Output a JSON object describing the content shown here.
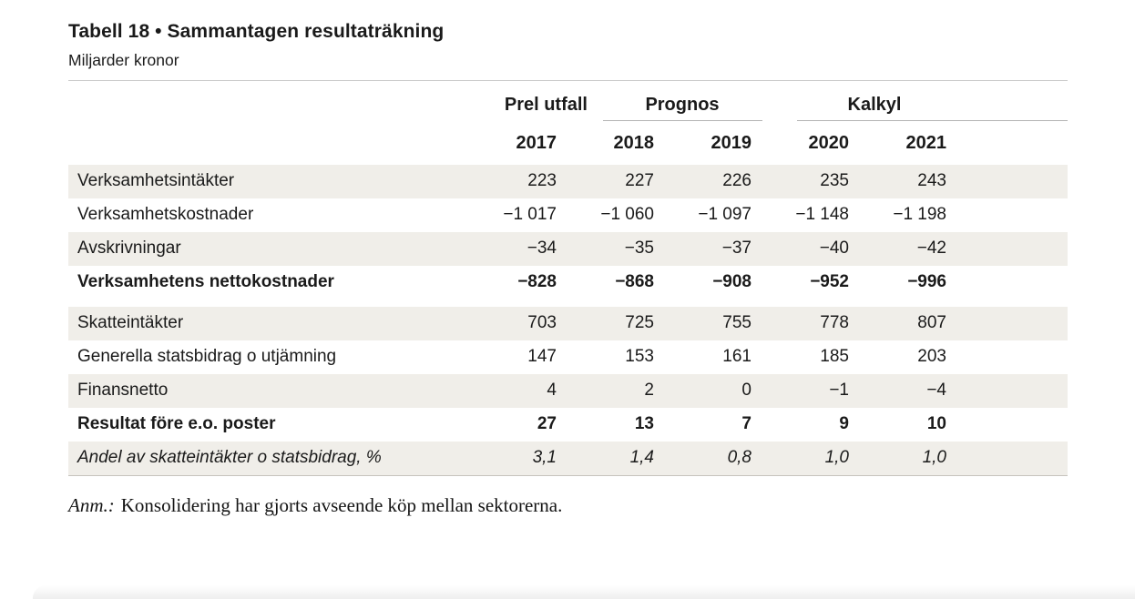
{
  "chart_data": {
    "type": "table",
    "title": "Tabell 18 • Sammantagen resultaträkning",
    "unit": "Miljarder kronor",
    "group_headers": [
      {
        "label": "Prel utfall",
        "columns": [
          "2017"
        ],
        "underlined": false
      },
      {
        "label": "Prognos",
        "columns": [
          "2018",
          "2019"
        ],
        "underlined": true
      },
      {
        "label": "Kalkyl",
        "columns": [
          "2020",
          "2021"
        ],
        "underlined": true
      }
    ],
    "columns": [
      "2017",
      "2018",
      "2019",
      "2020",
      "2021"
    ],
    "rows": [
      {
        "label": "Verksamhetsintäkter",
        "values": [
          "223",
          "227",
          "226",
          "235",
          "243"
        ],
        "values_numeric": [
          223,
          227,
          226,
          235,
          243
        ],
        "style": "normal",
        "shaded": true,
        "section_end": false
      },
      {
        "label": "Verksamhetskostnader",
        "values": [
          "−1 017",
          "−1 060",
          "−1 097",
          "−1 148",
          "−1 198"
        ],
        "values_numeric": [
          -1017,
          -1060,
          -1097,
          -1148,
          -1198
        ],
        "style": "normal",
        "shaded": false,
        "section_end": false
      },
      {
        "label": "Avskrivningar",
        "values": [
          "−34",
          "−35",
          "−37",
          "−40",
          "−42"
        ],
        "values_numeric": [
          -34,
          -35,
          -37,
          -40,
          -42
        ],
        "style": "normal",
        "shaded": true,
        "section_end": false
      },
      {
        "label": "Verksamhetens nettokostnader",
        "values": [
          "−828",
          "−868",
          "−908",
          "−952",
          "−996"
        ],
        "values_numeric": [
          -828,
          -868,
          -908,
          -952,
          -996
        ],
        "style": "bold",
        "shaded": false,
        "section_end": true
      },
      {
        "label": "Skatteintäkter",
        "values": [
          "703",
          "725",
          "755",
          "778",
          "807"
        ],
        "values_numeric": [
          703,
          725,
          755,
          778,
          807
        ],
        "style": "normal",
        "shaded": true,
        "section_end": false
      },
      {
        "label": "Generella statsbidrag o utjämning",
        "values": [
          "147",
          "153",
          "161",
          "185",
          "203"
        ],
        "values_numeric": [
          147,
          153,
          161,
          185,
          203
        ],
        "style": "normal",
        "shaded": false,
        "section_end": false
      },
      {
        "label": "Finansnetto",
        "values": [
          "4",
          "2",
          "0",
          "−1",
          "−4"
        ],
        "values_numeric": [
          4,
          2,
          0,
          -1,
          -4
        ],
        "style": "normal",
        "shaded": true,
        "section_end": false
      },
      {
        "label": "Resultat före e.o. poster",
        "values": [
          "27",
          "13",
          "7",
          "9",
          "10"
        ],
        "values_numeric": [
          27,
          13,
          7,
          9,
          10
        ],
        "style": "bold",
        "shaded": false,
        "section_end": false
      },
      {
        "label": "Andel av skatteintäkter o statsbidrag, %",
        "values": [
          "3,1",
          "1,4",
          "0,8",
          "1,0",
          "1,0"
        ],
        "values_numeric": [
          3.1,
          1.4,
          0.8,
          1.0,
          1.0
        ],
        "style": "italic",
        "shaded": true,
        "section_end": false
      }
    ]
  },
  "note": {
    "prefix": "Anm.:",
    "text": "Konsolidering har gjorts avseende köp mellan sektorerna."
  },
  "colors": {
    "shaded_row": "#f0eee9",
    "top_rule": "#c9c9c9",
    "header_underline": "#b3b3b3",
    "text": "#1a1a1a"
  }
}
